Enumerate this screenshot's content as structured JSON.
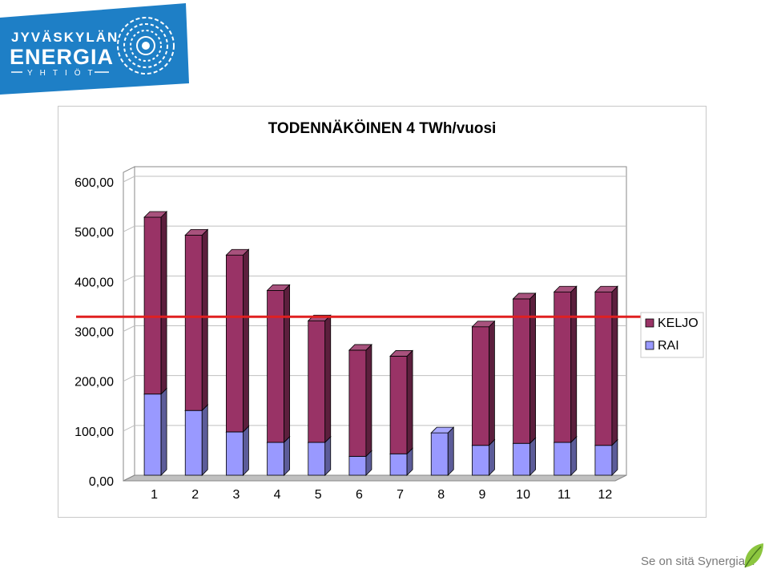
{
  "brand": {
    "line1": "JYVÄSKYLÄN",
    "line2": "ENERGIA",
    "line3": "YHTIÖT",
    "color": "#1e7fc6"
  },
  "footer": {
    "slogan": "Se on sitä Synergiaa."
  },
  "chart_data": {
    "type": "bar",
    "stacked": true,
    "three_d": true,
    "title": "TODENNÄKÖINEN 4 TWh/vuosi",
    "categories": [
      "1",
      "2",
      "3",
      "4",
      "5",
      "6",
      "7",
      "8",
      "9",
      "10",
      "11",
      "12"
    ],
    "series": [
      {
        "name": "RAI",
        "color": "#9999ff",
        "values": [
          163,
          130,
          87,
          66,
          66,
          38,
          43,
          85,
          60,
          64,
          66,
          60
        ]
      },
      {
        "name": "KELJO",
        "color": "#993366",
        "values": [
          355,
          352,
          355,
          305,
          244,
          213,
          196,
          0,
          238,
          290,
          302,
          308
        ]
      }
    ],
    "y_ticks": [
      "0,00",
      "100,00",
      "200,00",
      "300,00",
      "400,00",
      "500,00",
      "600,00"
    ],
    "ylim": [
      0,
      600
    ],
    "reference_line": {
      "value": 318,
      "color": "#e02020"
    },
    "grid": true,
    "legend_position": "right"
  }
}
